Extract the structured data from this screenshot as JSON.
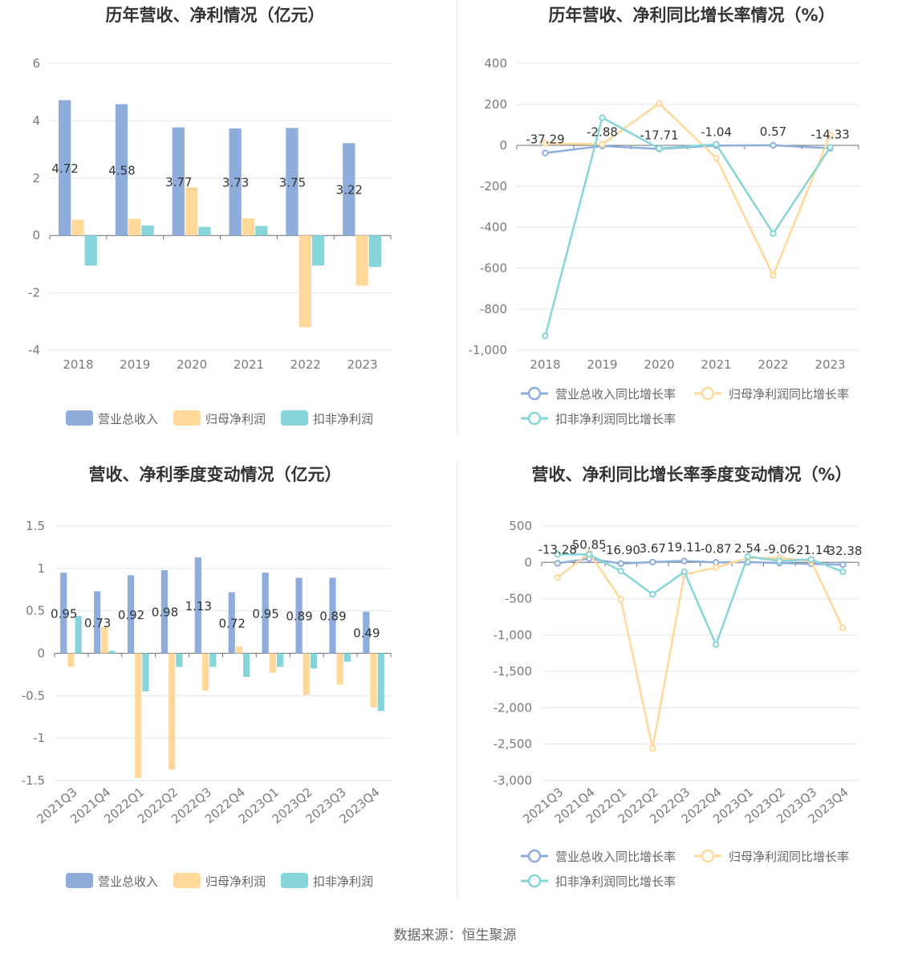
{
  "source": "数据来源：恒生聚源",
  "colors": {
    "revenue": "#8eaddb",
    "net": "#ffd89a",
    "deducted": "#85d5d9"
  },
  "chart_data": [
    {
      "type": "bar",
      "title": "历年营收、净利情况（亿元）",
      "categories": [
        "2018",
        "2019",
        "2020",
        "2021",
        "2022",
        "2023"
      ],
      "ylim": [
        -4,
        6
      ],
      "yticks": [
        6,
        4,
        2,
        0,
        -2,
        -4
      ],
      "grid": true,
      "legend_position": "bottom",
      "series": [
        {
          "name": "营业总收入",
          "values": [
            4.72,
            4.58,
            3.77,
            3.73,
            3.75,
            3.22
          ],
          "labels": [
            "4.72",
            "4.58",
            "3.77",
            "3.73",
            "3.75",
            "3.22"
          ]
        },
        {
          "name": "归母净利润",
          "values": [
            0.55,
            0.58,
            1.68,
            0.6,
            -3.2,
            -1.75
          ]
        },
        {
          "name": "扣非净利润",
          "values": [
            -1.05,
            0.35,
            0.3,
            0.33,
            -1.05,
            -1.1
          ]
        }
      ]
    },
    {
      "type": "line",
      "title": "历年营收、净利同比增长率情况（%）",
      "categories": [
        "2018",
        "2019",
        "2020",
        "2021",
        "2022",
        "2023"
      ],
      "ylim": [
        -1000,
        400
      ],
      "yticks": [
        400,
        200,
        0,
        -200,
        -400,
        -600,
        -800,
        -1000
      ],
      "yticklabels": [
        "400",
        "200",
        "0",
        "-200",
        "-400",
        "-600",
        "-800",
        "-1,000"
      ],
      "grid": true,
      "legend_position": "bottom",
      "series": [
        {
          "name": "营业总收入同比增长率",
          "values": [
            -37.29,
            -2.88,
            -17.71,
            -1.04,
            0.57,
            -14.33
          ],
          "labels": [
            "-37.29",
            "-2.88",
            "-17.71",
            "-1.04",
            "0.57",
            "-14.33"
          ]
        },
        {
          "name": "归母净利润同比增长率",
          "values": [
            10,
            5,
            205,
            -62,
            -635,
            50
          ]
        },
        {
          "name": "扣非净利润同比增长率",
          "values": [
            -930,
            135,
            -15,
            5,
            -430,
            -10
          ]
        }
      ]
    },
    {
      "type": "bar",
      "title": "营收、净利季度变动情况（亿元）",
      "categories": [
        "2021Q3",
        "2021Q4",
        "2022Q1",
        "2022Q2",
        "2022Q3",
        "2022Q4",
        "2023Q1",
        "2023Q2",
        "2023Q3",
        "2023Q4"
      ],
      "ylim": [
        -1.5,
        1.5
      ],
      "yticks": [
        1.5,
        1,
        0.5,
        0,
        -0.5,
        -1,
        -1.5
      ],
      "grid": true,
      "legend_position": "bottom",
      "series": [
        {
          "name": "营业总收入",
          "values": [
            0.95,
            0.73,
            0.92,
            0.98,
            1.13,
            0.72,
            0.95,
            0.89,
            0.89,
            0.49
          ],
          "labels": [
            "0.95",
            "0.73",
            "0.92",
            "0.98",
            "1.13",
            "0.72",
            "0.95",
            "0.89",
            "0.89",
            "0.49"
          ]
        },
        {
          "name": "归母净利润",
          "values": [
            -0.16,
            0.31,
            -1.47,
            -1.37,
            -0.44,
            0.08,
            -0.23,
            -0.49,
            -0.37,
            -0.64
          ]
        },
        {
          "name": "扣非净利润",
          "values": [
            0.44,
            0.03,
            -0.45,
            -0.16,
            -0.16,
            -0.28,
            -0.16,
            -0.18,
            -0.1,
            -0.68
          ]
        }
      ]
    },
    {
      "type": "line",
      "title": "营收、净利同比增长率季度变动情况（%）",
      "categories": [
        "2021Q3",
        "2021Q4",
        "2022Q1",
        "2022Q2",
        "2022Q3",
        "2022Q4",
        "2023Q1",
        "2023Q2",
        "2023Q3",
        "2023Q4"
      ],
      "ylim": [
        -3000,
        500
      ],
      "yticks": [
        500,
        0,
        -500,
        -1000,
        -1500,
        -2000,
        -2500,
        -3000
      ],
      "yticklabels": [
        "500",
        "0",
        "-500",
        "-1,000",
        "-1,500",
        "-2,000",
        "-2,500",
        "-3,000"
      ],
      "grid": true,
      "legend_position": "bottom",
      "series": [
        {
          "name": "营业总收入同比增长率",
          "values": [
            -13.28,
            50.85,
            -16.9,
            3.67,
            19.11,
            -0.87,
            2.54,
            -9.06,
            -21.14,
            -32.38
          ],
          "labels": [
            "-13.28",
            "50.85",
            "-16.90",
            "3.67",
            "19.11",
            "-0.87",
            "2.54",
            "-9.06",
            "-21.14",
            "-32.38"
          ]
        },
        {
          "name": "归母净利润同比增长率",
          "values": [
            -210,
            130,
            -510,
            -2560,
            -170,
            -70,
            60,
            60,
            20,
            -900
          ]
        },
        {
          "name": "扣非净利润同比增长率",
          "values": [
            110,
            110,
            -120,
            -440,
            -130,
            -1130,
            80,
            20,
            40,
            -130
          ]
        }
      ]
    }
  ]
}
